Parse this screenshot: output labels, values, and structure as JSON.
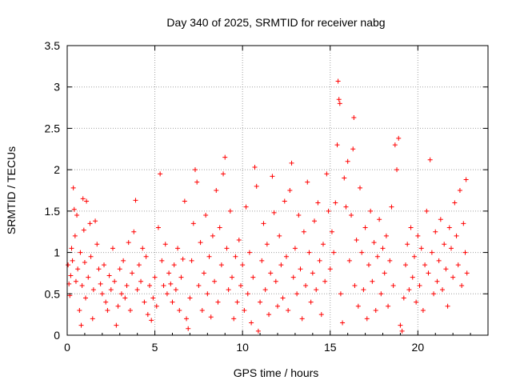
{
  "chart_data": {
    "type": "scatter",
    "title": "Day 340 of 2025, SRMTID for receiver nabg",
    "xlabel": "GPS time / hours",
    "ylabel": "SRMTID / TECUs",
    "xlim": [
      0,
      24
    ],
    "ylim": [
      0,
      3.5
    ],
    "xticks": [
      0,
      5,
      10,
      15,
      20
    ],
    "xtick_labels": [
      "0",
      "5",
      "10",
      "15",
      "20"
    ],
    "yticks": [
      0,
      0.5,
      1,
      1.5,
      2,
      2.5,
      3,
      3.5
    ],
    "ytick_labels": [
      "0",
      "0.5",
      "1",
      "1.5",
      "2",
      "2.5",
      "3",
      "3.5"
    ],
    "grid": true,
    "marker": "+",
    "marker_color": "#ff0000",
    "series": [
      {
        "name": "SRMTID",
        "points": [
          [
            0.05,
            0.85
          ],
          [
            0.1,
            0.62
          ],
          [
            0.15,
            0.48
          ],
          [
            0.2,
            0.72
          ],
          [
            0.25,
            1.05
          ],
          [
            0.3,
            0.9
          ],
          [
            0.35,
            1.78
          ],
          [
            0.4,
            1.52
          ],
          [
            0.45,
            1.2
          ],
          [
            0.5,
            0.65
          ],
          [
            0.55,
            1.45
          ],
          [
            0.6,
            0.8
          ],
          [
            0.7,
            0.3
          ],
          [
            0.75,
            1.0
          ],
          [
            0.8,
            0.12
          ],
          [
            0.85,
            0.6
          ],
          [
            0.9,
            1.65
          ],
          [
            0.95,
            1.27
          ],
          [
            1.0,
            0.88
          ],
          [
            1.05,
            0.45
          ],
          [
            1.1,
            1.62
          ],
          [
            1.2,
            0.7
          ],
          [
            1.3,
            1.35
          ],
          [
            1.35,
            0.95
          ],
          [
            1.45,
            0.2
          ],
          [
            1.5,
            0.55
          ],
          [
            1.6,
            1.38
          ],
          [
            1.7,
            1.1
          ],
          [
            1.8,
            0.8
          ],
          [
            1.9,
            0.62
          ],
          [
            2.0,
            0.5
          ],
          [
            2.1,
            0.85
          ],
          [
            2.2,
            0.4
          ],
          [
            2.3,
            0.3
          ],
          [
            2.4,
            0.72
          ],
          [
            2.5,
            0.55
          ],
          [
            2.6,
            1.05
          ],
          [
            2.7,
            0.65
          ],
          [
            2.8,
            0.12
          ],
          [
            2.9,
            0.35
          ],
          [
            3.0,
            0.8
          ],
          [
            3.1,
            0.5
          ],
          [
            3.2,
            0.9
          ],
          [
            3.3,
            0.45
          ],
          [
            3.4,
            0.6
          ],
          [
            3.5,
            1.12
          ],
          [
            3.6,
            0.3
          ],
          [
            3.7,
            0.75
          ],
          [
            3.8,
            1.25
          ],
          [
            3.9,
            1.63
          ],
          [
            4.0,
            0.55
          ],
          [
            4.1,
            0.85
          ],
          [
            4.2,
            0.65
          ],
          [
            4.3,
            1.05
          ],
          [
            4.4,
            0.4
          ],
          [
            4.5,
            0.95
          ],
          [
            4.6,
            0.25
          ],
          [
            4.7,
            0.6
          ],
          [
            4.8,
            0.18
          ],
          [
            4.9,
            0.45
          ],
          [
            5.0,
            0.7
          ],
          [
            5.1,
            0.35
          ],
          [
            5.2,
            1.3
          ],
          [
            5.3,
            1.95
          ],
          [
            5.4,
            0.9
          ],
          [
            5.5,
            0.6
          ],
          [
            5.6,
            1.1
          ],
          [
            5.7,
            0.5
          ],
          [
            5.8,
            0.75
          ],
          [
            5.9,
            0.62
          ],
          [
            6.0,
            0.4
          ],
          [
            6.1,
            0.85
          ],
          [
            6.2,
            0.55
          ],
          [
            6.3,
            1.05
          ],
          [
            6.4,
            0.3
          ],
          [
            6.5,
            0.7
          ],
          [
            6.6,
            0.92
          ],
          [
            6.7,
            1.62
          ],
          [
            6.8,
            0.2
          ],
          [
            6.9,
            0.08
          ],
          [
            7.0,
            0.45
          ],
          [
            7.1,
            0.9
          ],
          [
            7.2,
            1.35
          ],
          [
            7.3,
            2.0
          ],
          [
            7.4,
            1.85
          ],
          [
            7.5,
            0.6
          ],
          [
            7.6,
            1.12
          ],
          [
            7.7,
            0.3
          ],
          [
            7.8,
            0.75
          ],
          [
            7.9,
            1.45
          ],
          [
            8.0,
            0.5
          ],
          [
            8.1,
            0.95
          ],
          [
            8.2,
            0.22
          ],
          [
            8.3,
            1.2
          ],
          [
            8.4,
            0.65
          ],
          [
            8.5,
            1.75
          ],
          [
            8.6,
            0.4
          ],
          [
            8.7,
            1.3
          ],
          [
            8.8,
            0.85
          ],
          [
            8.9,
            1.95
          ],
          [
            9.0,
            2.15
          ],
          [
            9.1,
            1.05
          ],
          [
            9.2,
            0.55
          ],
          [
            9.3,
            1.5
          ],
          [
            9.4,
            0.7
          ],
          [
            9.5,
            0.2
          ],
          [
            9.6,
            0.95
          ],
          [
            9.7,
            0.4
          ],
          [
            9.8,
            1.15
          ],
          [
            9.9,
            0.6
          ],
          [
            10.0,
            0.85
          ],
          [
            10.1,
            0.3
          ],
          [
            10.2,
            1.55
          ],
          [
            10.3,
            0.5
          ],
          [
            10.4,
            1.0
          ],
          [
            10.5,
            0.15
          ],
          [
            10.6,
            0.7
          ],
          [
            10.7,
            2.03
          ],
          [
            10.8,
            1.8
          ],
          [
            10.9,
            0.05
          ],
          [
            11.0,
            0.4
          ],
          [
            11.1,
            0.9
          ],
          [
            11.2,
            1.35
          ],
          [
            11.3,
            0.55
          ],
          [
            11.4,
            1.1
          ],
          [
            11.5,
            0.25
          ],
          [
            11.6,
            0.75
          ],
          [
            11.7,
            1.92
          ],
          [
            11.8,
            1.48
          ],
          [
            11.9,
            0.65
          ],
          [
            12.0,
            0.35
          ],
          [
            12.1,
            1.2
          ],
          [
            12.2,
            0.85
          ],
          [
            12.3,
            0.45
          ],
          [
            12.4,
            1.62
          ],
          [
            12.5,
            0.95
          ],
          [
            12.6,
            0.3
          ],
          [
            12.7,
            1.75
          ],
          [
            12.8,
            2.08
          ],
          [
            12.9,
            0.7
          ],
          [
            13.0,
            1.05
          ],
          [
            13.1,
            0.5
          ],
          [
            13.2,
            1.45
          ],
          [
            13.3,
            0.8
          ],
          [
            13.4,
            0.2
          ],
          [
            13.5,
            1.25
          ],
          [
            13.6,
            0.6
          ],
          [
            13.7,
            1.85
          ],
          [
            13.8,
            1.0
          ],
          [
            13.9,
            0.4
          ],
          [
            14.0,
            0.75
          ],
          [
            14.1,
            1.38
          ],
          [
            14.2,
            0.55
          ],
          [
            14.3,
            1.6
          ],
          [
            14.4,
            0.9
          ],
          [
            14.5,
            0.25
          ],
          [
            14.6,
            1.1
          ],
          [
            14.7,
            0.65
          ],
          [
            14.8,
            1.95
          ],
          [
            14.9,
            1.5
          ],
          [
            15.0,
            0.8
          ],
          [
            15.1,
            1.25
          ],
          [
            15.2,
            1.0
          ],
          [
            15.3,
            1.6
          ],
          [
            15.4,
            2.3
          ],
          [
            15.45,
            3.07
          ],
          [
            15.5,
            2.85
          ],
          [
            15.55,
            2.8
          ],
          [
            15.6,
            0.5
          ],
          [
            15.7,
            0.15
          ],
          [
            15.8,
            1.9
          ],
          [
            15.9,
            1.55
          ],
          [
            16.0,
            2.1
          ],
          [
            16.1,
            0.9
          ],
          [
            16.2,
            1.45
          ],
          [
            16.3,
            2.25
          ],
          [
            16.35,
            2.63
          ],
          [
            16.4,
            0.6
          ],
          [
            16.5,
            1.15
          ],
          [
            16.6,
            0.35
          ],
          [
            16.7,
            1.78
          ],
          [
            16.8,
            1.0
          ],
          [
            16.9,
            0.55
          ],
          [
            17.0,
            1.3
          ],
          [
            17.1,
            0.2
          ],
          [
            17.2,
            0.85
          ],
          [
            17.3,
            1.5
          ],
          [
            17.4,
            0.65
          ],
          [
            17.5,
            1.12
          ],
          [
            17.6,
            0.3
          ],
          [
            17.7,
            0.95
          ],
          [
            17.8,
            1.4
          ],
          [
            17.9,
            0.5
          ],
          [
            18.0,
            1.05
          ],
          [
            18.1,
            0.75
          ],
          [
            18.2,
            1.2
          ],
          [
            18.3,
            0.35
          ],
          [
            18.4,
            0.9
          ],
          [
            18.5,
            1.55
          ],
          [
            18.6,
            0.6
          ],
          [
            18.7,
            2.3
          ],
          [
            18.8,
            2.0
          ],
          [
            18.9,
            2.38
          ],
          [
            19.0,
            0.12
          ],
          [
            19.1,
            0.05
          ],
          [
            19.2,
            0.45
          ],
          [
            19.3,
            0.85
          ],
          [
            19.4,
            1.1
          ],
          [
            19.5,
            0.55
          ],
          [
            19.6,
            1.3
          ],
          [
            19.7,
            0.7
          ],
          [
            19.8,
            0.95
          ],
          [
            19.9,
            0.4
          ],
          [
            20.0,
            1.2
          ],
          [
            20.1,
            0.6
          ],
          [
            20.2,
            1.05
          ],
          [
            20.3,
            0.3
          ],
          [
            20.4,
            0.85
          ],
          [
            20.5,
            1.5
          ],
          [
            20.6,
            0.75
          ],
          [
            20.7,
            2.12
          ],
          [
            20.8,
            1.0
          ],
          [
            20.9,
            0.5
          ],
          [
            21.0,
            1.25
          ],
          [
            21.1,
            0.65
          ],
          [
            21.2,
            0.9
          ],
          [
            21.3,
            1.4
          ],
          [
            21.4,
            0.55
          ],
          [
            21.5,
            1.1
          ],
          [
            21.6,
            0.8
          ],
          [
            21.7,
            0.35
          ],
          [
            21.8,
            1.3
          ],
          [
            21.9,
            1.05
          ],
          [
            22.0,
            0.7
          ],
          [
            22.1,
            1.6
          ],
          [
            22.2,
            1.2
          ],
          [
            22.3,
            0.85
          ],
          [
            22.4,
            1.75
          ],
          [
            22.5,
            0.6
          ],
          [
            22.6,
            1.35
          ],
          [
            22.7,
            1.0
          ],
          [
            22.75,
            1.88
          ],
          [
            22.8,
            0.75
          ]
        ]
      }
    ]
  }
}
